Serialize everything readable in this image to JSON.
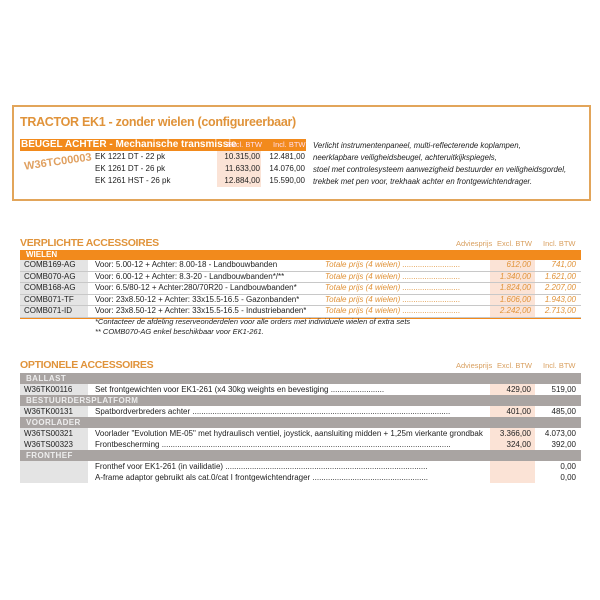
{
  "product": {
    "title": "TRACTOR EK1  - zonder wielen (configureerbaar)",
    "header": "BEUGEL ACHTER - Mechanische transmissie",
    "col_excl": "Excl. BTW",
    "col_incl": "Incl. BTW",
    "code": "W36TC00003",
    "models": [
      {
        "name": "EK 1221 DT - 22 pk",
        "excl": "10.315,00",
        "incl": "12.481,00"
      },
      {
        "name": "EK 1261 DT - 26 pk",
        "excl": "11.633,00",
        "incl": "14.076,00"
      },
      {
        "name": "EK 1261 HST - 26 pk",
        "excl": "12.884,00",
        "incl": "15.590,00"
      }
    ],
    "description": [
      "Verlicht instrumentenpaneel, multi-reflecterende koplampen,",
      "neerklapbare veiligheidsbeugel, achteruitkijkspiegels,",
      "stoel met controlesysteem aanwezigheid bestuurder en veiligheidsgordel,",
      "trekbek met pen voor, trekhaak achter en frontgewichtendrager."
    ]
  },
  "mandatory": {
    "title": "VERPLICHTE ACCESSOIRES",
    "col_advies": "Adviesprijs",
    "col_excl": "Excl. BTW",
    "col_incl": "Incl. BTW",
    "group": "WIELEN",
    "rows": [
      {
        "code": "COMB169-AG",
        "desc": "Voor: 5.00-12 + Achter: 8.00-18 - Landbouwbanden",
        "total": "Totale prijs (4 wielen) ..........................",
        "excl": "612,00",
        "incl": "741,00"
      },
      {
        "code": "COMB070-AG",
        "desc": "Voor: 6.00-12 + Achter: 8.3-20 - Landbouwbanden*/**",
        "total": "Totale prijs (4 wielen) ..........................",
        "excl": "1.340,00",
        "incl": "1.621,00"
      },
      {
        "code": "COMB168-AG",
        "desc": "Voor: 6.5/80-12 + Achter:280/70R20 - Landbouwbanden*",
        "total": "Totale prijs (4 wielen) ..........................",
        "excl": "1.824,00",
        "incl": "2.207,00"
      },
      {
        "code": "COMB071-TF",
        "desc": "Voor: 23x8.50-12 + Achter: 33x15.5-16.5 - Gazonbanden*",
        "total": "Totale prijs (4 wielen) ..........................",
        "excl": "1.606,00",
        "incl": "1.943,00"
      },
      {
        "code": "COMB071-ID",
        "desc": "Voor: 23x8.50-12 + Achter: 33x15.5-16.5 - Industriebanden*",
        "total": "Totale prijs (4 wielen) ..........................",
        "excl": "2.242,00",
        "incl": "2.713,00"
      }
    ],
    "notes": [
      "*Contacteer de afdeling reserveonderdelen voor alle orders met individuele wielen of extra sets",
      "** COMB070-AG enkel beschikbaar voor EK1-261."
    ]
  },
  "optional": {
    "title": "OPTIONELE ACCESSOIRES",
    "col_advies": "Adviesprijs",
    "col_excl": "Excl. BTW",
    "col_incl": "Incl. BTW",
    "groups": [
      {
        "name": "BALLAST",
        "rows": [
          {
            "code": "W36TK00116",
            "desc": "Set frontgewichten voor EK1-261 (x4 30kg weights en bevestiging ........................",
            "excl": "429,00",
            "incl": "519,00"
          }
        ]
      },
      {
        "name": "BESTUURDERSPLATFORM",
        "rows": [
          {
            "code": "W36TK00131",
            "desc": "Spatbordverbreders achter ....................................................................................................................",
            "excl": "401,00",
            "incl": "485,00"
          }
        ]
      },
      {
        "name": "VOORLADER",
        "rows": [
          {
            "code": "W36TS00321",
            "desc": "Voorlader \"Evolution ME-05\" met hydraulisch ventiel, joystick, aansluiting midden + 1,25m vierkante grondbak ..",
            "excl": "3.366,00",
            "incl": "4.073,00"
          },
          {
            "code": "W36TS00323",
            "desc": "Frontbescherming ..................................................................................................................................",
            "excl": "324,00",
            "incl": "392,00"
          }
        ]
      },
      {
        "name": "FRONTHEF",
        "rows": [
          {
            "code": "",
            "desc": "Fronthef voor EK1-261 (in vailidatie) ...........................................................................................",
            "excl": "",
            "incl": "0,00"
          },
          {
            "code": "",
            "desc": "A-frame adaptor gebruikt als cat.0/cat I frontgewichtendrager ....................................................",
            "excl": "",
            "incl": "0,00"
          }
        ]
      }
    ]
  }
}
